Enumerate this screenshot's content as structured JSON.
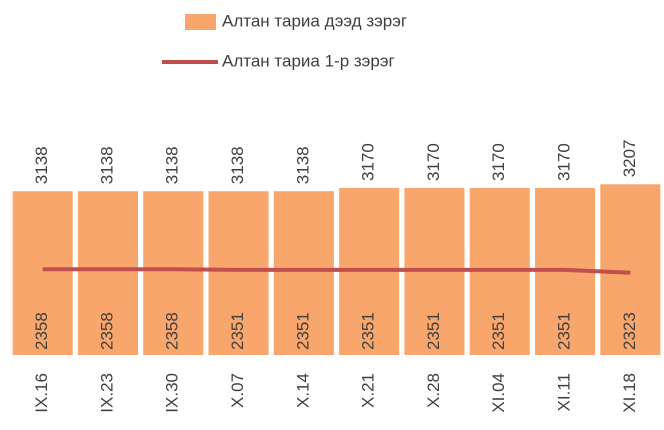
{
  "chart_data": {
    "type": "bar",
    "categories": [
      "IX.16",
      "IX.23",
      "IX.30",
      "X.07",
      "X.14",
      "X.21",
      "X.28",
      "XI.04",
      "XI.11",
      "XI.18"
    ],
    "series": [
      {
        "name": "Алтан тариа дээд зэрэг",
        "type": "bar",
        "color": "#f9a66c",
        "values": [
          3138,
          3138,
          3138,
          3138,
          3138,
          3170,
          3170,
          3170,
          3170,
          3207
        ]
      },
      {
        "name": "Алтан тариа 1-р зэрэг",
        "type": "line",
        "color": "#c0504d",
        "values": [
          2358,
          2358,
          2358,
          2351,
          2351,
          2351,
          2351,
          2351,
          2351,
          2323
        ]
      }
    ],
    "ylim": [
      1500,
      3500
    ]
  }
}
